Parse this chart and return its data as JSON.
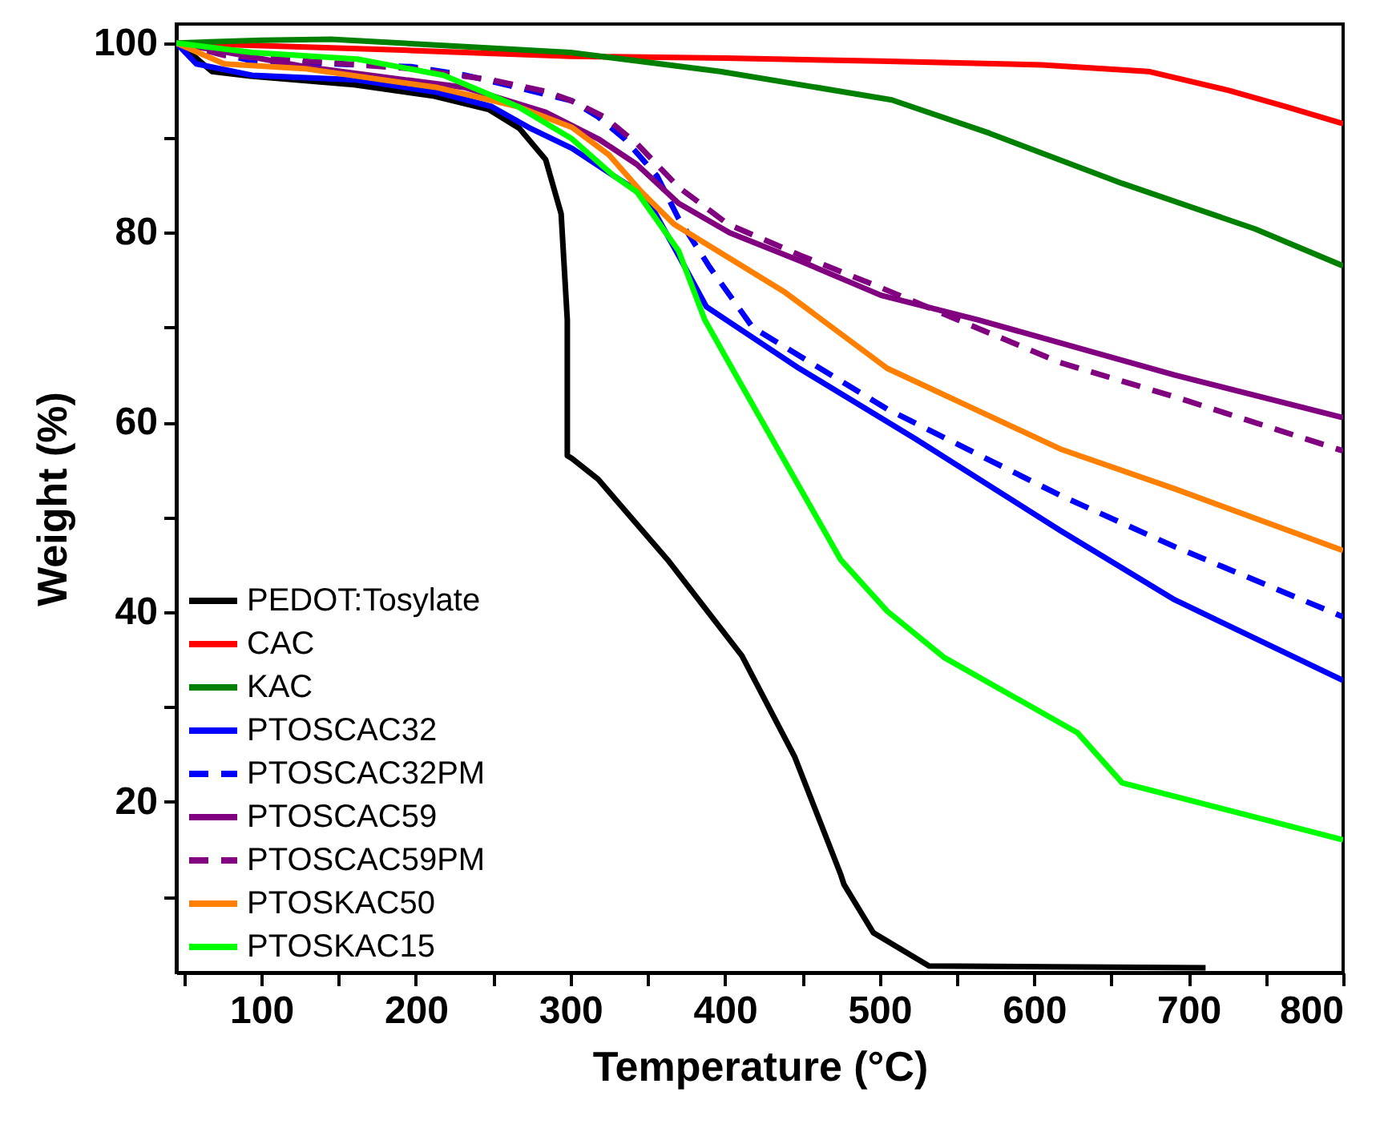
{
  "chart_data": {
    "type": "line",
    "xlabel": "Temperature (°C)",
    "ylabel": "Weight (%)",
    "xlim": [
      45,
      800
    ],
    "ylim": [
      2,
      102
    ],
    "xticks": [
      {
        "value": 50,
        "label": null
      },
      100,
      {
        "value": 150,
        "label": null
      },
      200,
      {
        "value": 250,
        "label": null
      },
      300,
      {
        "value": 350,
        "label": null
      },
      400,
      {
        "value": 450,
        "label": null
      },
      500,
      {
        "value": 550,
        "label": null
      },
      600,
      {
        "value": 650,
        "label": null
      },
      700,
      {
        "value": 750,
        "label": null
      },
      800
    ],
    "yticks": [
      {
        "value": 10,
        "label": null
      },
      20,
      {
        "value": 30,
        "label": null
      },
      40,
      {
        "value": 50,
        "label": null
      },
      60,
      {
        "value": 70,
        "label": null
      },
      80,
      {
        "value": 90,
        "label": null
      },
      100
    ],
    "grid": false,
    "legend": "bottom left",
    "series": [
      {
        "name": "PEDOT:Tosylate",
        "color": "#000000",
        "line_style": "solid",
        "x": [
          45,
          58,
          68,
          93,
          160,
          212,
          247,
          267,
          284,
          294,
          298,
          298,
          301,
          318,
          363,
          411,
          445,
          475,
          477,
          496,
          532,
          711
        ],
        "values": [
          100,
          98.4,
          97,
          96.5,
          95.6,
          94.4,
          93,
          91,
          87.7,
          82,
          70.8,
          56.5,
          56.2,
          54,
          45.5,
          35.4,
          24.8,
          12.3,
          11.3,
          6.2,
          2.7,
          2.5
        ]
      },
      {
        "name": "CAC",
        "color": "#ff0000",
        "line_style": "solid",
        "x": [
          45,
          200,
          300,
          400,
          500,
          605,
          674,
          726,
          763,
          800
        ],
        "values": [
          100,
          99.2,
          98.6,
          98.4,
          98.1,
          97.7,
          97,
          95,
          93.3,
          91.5
        ]
      },
      {
        "name": "KAC",
        "color": "#008000",
        "line_style": "solid",
        "x": [
          45,
          100,
          145,
          300,
          397,
          508,
          571,
          657,
          743,
          800
        ],
        "values": [
          100,
          100.3,
          100.4,
          99,
          97,
          94,
          90.5,
          85.2,
          80.4,
          76.5
        ]
      },
      {
        "name": "PTOSCAC32",
        "color": "#0000ff",
        "line_style": "solid",
        "x": [
          45,
          58,
          94,
          162,
          214,
          249,
          273,
          301,
          328,
          349,
          370,
          388,
          448,
          523,
          617,
          691,
          800
        ],
        "values": [
          100,
          97.8,
          96.6,
          96.1,
          94.8,
          93.3,
          91.1,
          88.9,
          86,
          83.8,
          77.6,
          72.2,
          65.7,
          58.3,
          48.6,
          41.3,
          32.8
        ]
      },
      {
        "name": "PTOSCAC32PM",
        "color": "#0000ff",
        "line_style": "dashed",
        "x": [
          45,
          94,
          197,
          232,
          266,
          301,
          318,
          335,
          356,
          370,
          390,
          418,
          505,
          617,
          691,
          800
        ],
        "values": [
          100,
          98.1,
          97.5,
          96.6,
          95.3,
          93.9,
          92.2,
          89.9,
          86,
          81.5,
          76.4,
          70,
          61.4,
          52.3,
          46.9,
          39.5
        ]
      },
      {
        "name": "PTOSCAC59",
        "color": "#800080",
        "line_style": "solid",
        "x": [
          45,
          128,
          232,
          284,
          318,
          343,
          370,
          403,
          449,
          501,
          564,
          691,
          800
        ],
        "values": [
          100,
          97.5,
          95.3,
          92.7,
          89.9,
          87.2,
          83.1,
          80,
          77,
          73.4,
          70.8,
          65,
          60.5
        ]
      },
      {
        "name": "PTOSCAC59PM",
        "color": "#800080",
        "line_style": "dashed",
        "x": [
          45,
          76,
          128,
          197,
          249,
          284,
          301,
          322,
          343,
          370,
          402,
          449,
          501,
          617,
          691,
          800
        ],
        "values": [
          100,
          98.7,
          98.1,
          97.3,
          96.1,
          94.9,
          93.9,
          92.2,
          89.4,
          84.8,
          80.9,
          77.6,
          74.2,
          66.3,
          62.7,
          57
        ]
      },
      {
        "name": "PTOSKAC50",
        "color": "#ff8000",
        "line_style": "solid",
        "x": [
          45,
          76,
          128,
          214,
          266,
          301,
          325,
          346,
          367,
          405,
          439,
          505,
          617,
          691,
          800
        ],
        "values": [
          100,
          97.8,
          97.3,
          95.3,
          93.3,
          91.1,
          88.2,
          84.3,
          80.9,
          77.1,
          73.7,
          65.7,
          57.2,
          53,
          46.5
        ]
      },
      {
        "name": "PTOSKAC15",
        "color": "#00ff00",
        "line_style": "solid",
        "x": [
          45,
          94,
          162,
          218,
          266,
          301,
          328,
          343,
          370,
          387,
          407,
          475,
          505,
          542,
          628,
          657,
          800
        ],
        "values": [
          100,
          99,
          98.3,
          96.6,
          93.3,
          89.9,
          86,
          84.3,
          78.1,
          70.8,
          65,
          45.5,
          40.1,
          35.2,
          27.3,
          22,
          16
        ]
      }
    ]
  }
}
